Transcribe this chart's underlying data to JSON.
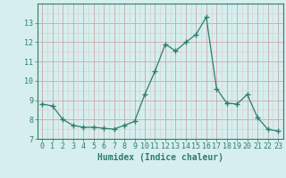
{
  "x": [
    0,
    1,
    2,
    3,
    4,
    5,
    6,
    7,
    8,
    9,
    10,
    11,
    12,
    13,
    14,
    15,
    16,
    17,
    18,
    19,
    20,
    21,
    22,
    23
  ],
  "y": [
    8.8,
    8.7,
    8.0,
    7.7,
    7.6,
    7.6,
    7.55,
    7.5,
    7.7,
    7.9,
    9.3,
    10.5,
    11.9,
    11.55,
    12.0,
    12.4,
    13.3,
    9.6,
    8.85,
    8.8,
    9.3,
    8.1,
    7.5,
    7.4
  ],
  "line_color": "#2e7d6e",
  "marker": "+",
  "marker_size": 4,
  "bg_color": "#d6eeee",
  "grid_major_color": "#c8a8a8",
  "grid_minor_color": "#e0c8c8",
  "axis_color": "#2e7d6e",
  "tick_color": "#2e7d6e",
  "xlabel": "Humidex (Indice chaleur)",
  "ylim": [
    7,
    14
  ],
  "xlim": [
    -0.5,
    23.5
  ],
  "yticks": [
    7,
    8,
    9,
    10,
    11,
    12,
    13
  ],
  "xticks": [
    0,
    1,
    2,
    3,
    4,
    5,
    6,
    7,
    8,
    9,
    10,
    11,
    12,
    13,
    14,
    15,
    16,
    17,
    18,
    19,
    20,
    21,
    22,
    23
  ],
  "label_fontsize": 7,
  "tick_fontsize": 6
}
